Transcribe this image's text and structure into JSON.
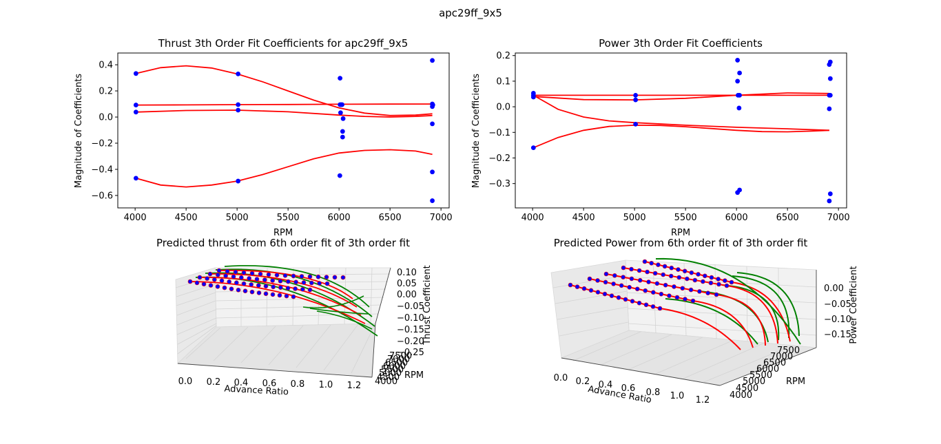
{
  "figure": {
    "suptitle": "apc29ff_9x5"
  },
  "colors": {
    "points": "#0000ff",
    "fit": "#ff0000",
    "fit3d": "#008000",
    "pane": "#f2f2f2",
    "grid": "#d0d0d0"
  },
  "chart_data": [
    {
      "type": "scatter",
      "title": "Thrust 3th Order Fit Coefficients for apc29ff_9x5",
      "xlabel": "RPM",
      "ylabel": "Magnitude of Coefficients",
      "xlim": [
        3830,
        7080
      ],
      "ylim": [
        -0.695,
        0.49
      ],
      "xticks": [
        4000,
        4500,
        5000,
        5500,
        6000,
        6500,
        7000
      ],
      "yticks": [
        -0.6,
        -0.4,
        -0.2,
        0.0,
        0.2,
        0.4
      ],
      "ytick_labels": [
        "−0.6",
        "−0.4",
        "−0.2",
        "0.0",
        "0.2",
        "0.4"
      ],
      "points": [
        [
          4008,
          0.333
        ],
        [
          4008,
          0.092
        ],
        [
          4008,
          0.038
        ],
        [
          4008,
          -0.468
        ],
        [
          5010,
          0.33
        ],
        [
          5010,
          0.095
        ],
        [
          5010,
          0.053
        ],
        [
          5010,
          -0.49
        ],
        [
          6010,
          0.297
        ],
        [
          6010,
          0.095
        ],
        [
          6020,
          0.095
        ],
        [
          6030,
          0.095
        ],
        [
          6015,
          0.033
        ],
        [
          6040,
          -0.012
        ],
        [
          6035,
          -0.11
        ],
        [
          6035,
          -0.153
        ],
        [
          6008,
          -0.448
        ],
        [
          6915,
          0.433
        ],
        [
          6915,
          0.1
        ],
        [
          6920,
          0.093
        ],
        [
          6915,
          0.08
        ],
        [
          6915,
          -0.052
        ],
        [
          6915,
          -0.42
        ],
        [
          6915,
          -0.64
        ]
      ],
      "fit_lines": [
        {
          "x": [
            4008,
            4250,
            4500,
            4750,
            5000,
            5250,
            5500,
            5750,
            6000,
            6250,
            6500,
            6750,
            6915
          ],
          "y": [
            0.333,
            0.378,
            0.392,
            0.375,
            0.33,
            0.27,
            0.2,
            0.13,
            0.07,
            0.03,
            0.012,
            0.015,
            0.025
          ]
        },
        {
          "x": [
            4008,
            4500,
            5000,
            5500,
            6000,
            6500,
            6915
          ],
          "y": [
            0.092,
            0.093,
            0.095,
            0.096,
            0.098,
            0.099,
            0.1
          ]
        },
        {
          "x": [
            4008,
            4500,
            5000,
            5500,
            6000,
            6250,
            6500,
            6750,
            6915
          ],
          "y": [
            0.038,
            0.05,
            0.053,
            0.04,
            0.015,
            0.005,
            0.0,
            0.005,
            0.012
          ]
        },
        {
          "x": [
            4008,
            4250,
            4500,
            4750,
            5000,
            5250,
            5500,
            5750,
            6000,
            6250,
            6500,
            6750,
            6915
          ],
          "y": [
            -0.468,
            -0.52,
            -0.535,
            -0.52,
            -0.49,
            -0.44,
            -0.38,
            -0.32,
            -0.275,
            -0.255,
            -0.25,
            -0.26,
            -0.285
          ]
        }
      ]
    },
    {
      "type": "scatter",
      "title": "Power 3th Order Fit Coefficients",
      "xlabel": "RPM",
      "ylabel": "Magnitude of Coefficients",
      "xlim": [
        3830,
        7080
      ],
      "ylim": [
        -0.395,
        0.21
      ],
      "xticks": [
        4000,
        4500,
        5000,
        5500,
        6000,
        6500,
        7000
      ],
      "yticks": [
        -0.3,
        -0.2,
        -0.1,
        0.0,
        0.1,
        0.2
      ],
      "ytick_labels": [
        "−0.3",
        "−0.2",
        "−0.1",
        "0.0",
        "0.1",
        "0.2"
      ],
      "points": [
        [
          4008,
          0.053
        ],
        [
          4008,
          0.045
        ],
        [
          4008,
          0.038
        ],
        [
          4008,
          -0.16
        ],
        [
          5010,
          0.045
        ],
        [
          5010,
          0.027
        ],
        [
          5010,
          -0.068
        ],
        [
          6010,
          0.182
        ],
        [
          6030,
          0.132
        ],
        [
          6010,
          0.1
        ],
        [
          6015,
          0.045
        ],
        [
          6030,
          0.045
        ],
        [
          6025,
          -0.005
        ],
        [
          6010,
          -0.335
        ],
        [
          6030,
          -0.325
        ],
        [
          6910,
          0.165
        ],
        [
          6920,
          0.175
        ],
        [
          6920,
          0.11
        ],
        [
          6910,
          0.045
        ],
        [
          6920,
          0.045
        ],
        [
          6910,
          -0.008
        ],
        [
          6920,
          -0.34
        ],
        [
          6910,
          -0.368
        ]
      ],
      "fit_lines": [
        {
          "x": [
            4008,
            4500,
            5000,
            5500,
            6000,
            6500,
            6910
          ],
          "y": [
            0.045,
            0.045,
            0.045,
            0.045,
            0.045,
            0.045,
            0.045
          ]
        },
        {
          "x": [
            4008,
            4500,
            5000,
            5500,
            6000,
            6500,
            6910
          ],
          "y": [
            0.04,
            0.028,
            0.027,
            0.033,
            0.045,
            0.054,
            0.052
          ]
        },
        {
          "x": [
            4008,
            4250,
            4500,
            4750,
            5000,
            5250,
            5500,
            5750,
            6000,
            6250,
            6500,
            6750,
            6910
          ],
          "y": [
            -0.16,
            -0.12,
            -0.092,
            -0.077,
            -0.072,
            -0.073,
            -0.078,
            -0.085,
            -0.092,
            -0.097,
            -0.098,
            -0.095,
            -0.092
          ]
        },
        {
          "x": [
            4008,
            4250,
            4500,
            4750,
            5000,
            5500,
            6000,
            6500,
            6910
          ],
          "y": [
            0.045,
            -0.01,
            -0.04,
            -0.055,
            -0.062,
            -0.072,
            -0.08,
            -0.086,
            -0.092
          ]
        }
      ]
    },
    {
      "type": "line",
      "title": "Predicted thrust from 6th order fit of 3th order fit",
      "xlabel": "Advance Ratio",
      "ylabel": "RPM",
      "zlabel": "Thrust Coefficient",
      "xticks": [
        "0.0",
        "0.2",
        "0.4",
        "0.6",
        "0.8",
        "1.0",
        "1.2"
      ],
      "yticks": [
        "4000",
        "4500",
        "5000",
        "5500",
        "6000",
        "6500",
        "7000",
        "7500"
      ],
      "zticks": [
        "0.10",
        "0.05",
        "0.00",
        "−0.05",
        "−0.10",
        "−0.15",
        "−0.20",
        "−0.25"
      ]
    },
    {
      "type": "line",
      "title": "Predicted Power from 6th order fit of 3th order fit",
      "xlabel": "Advance Ratio",
      "ylabel": "RPM",
      "zlabel": "Power Coefficient",
      "xticks": [
        "0.0",
        "0.2",
        "0.4",
        "0.6",
        "0.8",
        "1.0",
        "1.2"
      ],
      "yticks": [
        "4000",
        "4500",
        "5000",
        "5500",
        "6000",
        "6500",
        "7000",
        "7500"
      ],
      "zticks": [
        "0.00",
        "−0.05",
        "−0.10",
        "−0.15"
      ]
    }
  ]
}
